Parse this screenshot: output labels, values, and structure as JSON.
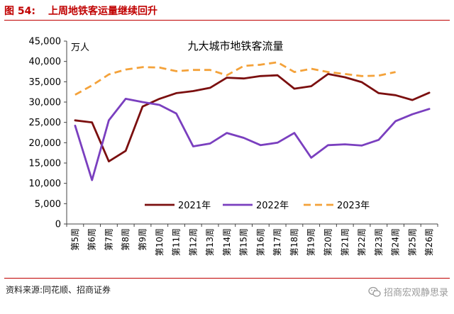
{
  "header": {
    "label": "图 54:",
    "title": "上周地铁客运量继续回升"
  },
  "source": "资料来源:同花顺、招商证券",
  "watermark": "招商宏观静思录",
  "colors": {
    "header": "#c00000",
    "s2021": "#7b0f0f",
    "s2022": "#7a3fbf",
    "s2023": "#f4a23a"
  },
  "chart_data": {
    "type": "line",
    "title": "九大城市地铁客流量",
    "ylabel": "万人",
    "ylim": [
      0,
      45000
    ],
    "yticks": [
      0,
      5000,
      10000,
      15000,
      20000,
      25000,
      30000,
      35000,
      40000,
      45000
    ],
    "ytick_labels": [
      "0",
      "5,000",
      "10,000",
      "15,000",
      "20,000",
      "25,000",
      "30,000",
      "35,000",
      "40,000",
      "45,000"
    ],
    "categories": [
      "第5周",
      "第6周",
      "第7周",
      "第8周",
      "第9周",
      "第10周",
      "第11周",
      "第12周",
      "第13周",
      "第14周",
      "第15周",
      "第16周",
      "第17周",
      "第18周",
      "第19周",
      "第20周",
      "第21周",
      "第22周",
      "第23周",
      "第24周",
      "第25周",
      "第26周"
    ],
    "legend_position": "bottom-inside",
    "series": [
      {
        "name": "2021年",
        "style": "solid",
        "values": [
          25500,
          25000,
          15400,
          18000,
          28900,
          30800,
          32200,
          32700,
          33500,
          36000,
          35800,
          36400,
          36600,
          33300,
          33900,
          36900,
          36100,
          34900,
          32200,
          31700,
          30500,
          32300
        ]
      },
      {
        "name": "2022年",
        "style": "solid",
        "values": [
          24200,
          10800,
          25500,
          30800,
          30000,
          29300,
          27200,
          19100,
          19800,
          22400,
          21200,
          19400,
          20000,
          22400,
          16300,
          19400,
          19600,
          19300,
          20700,
          25300,
          27000,
          28300
        ]
      },
      {
        "name": "2023年",
        "style": "dashed",
        "values": [
          31800,
          34100,
          36800,
          38000,
          38600,
          38500,
          37600,
          37900,
          37900,
          36600,
          38900,
          39200,
          39800,
          37400,
          38200,
          37400,
          36900,
          36400,
          36500,
          37400,
          null,
          null
        ]
      }
    ]
  }
}
